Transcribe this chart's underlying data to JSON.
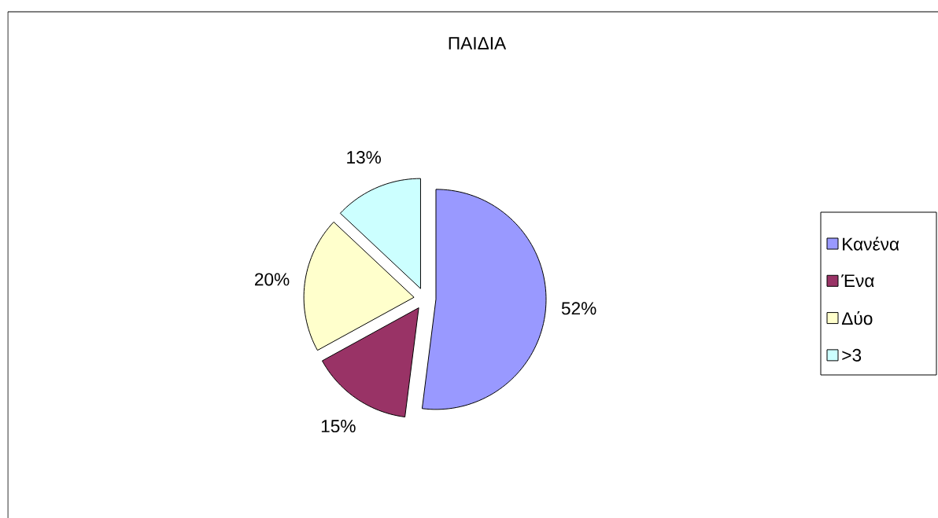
{
  "chart_data": {
    "type": "pie",
    "title": "ΠΑΙΔΙΑ",
    "categories": [
      "Κανένα",
      "Ένα",
      "Δύο",
      ">3"
    ],
    "values": [
      52,
      15,
      20,
      13
    ],
    "colors": [
      "#9999ff",
      "#993366",
      "#ffffcc",
      "#ccffff"
    ],
    "value_labels": [
      "52%",
      "15%",
      "20%",
      "13%"
    ],
    "legend": "right"
  }
}
